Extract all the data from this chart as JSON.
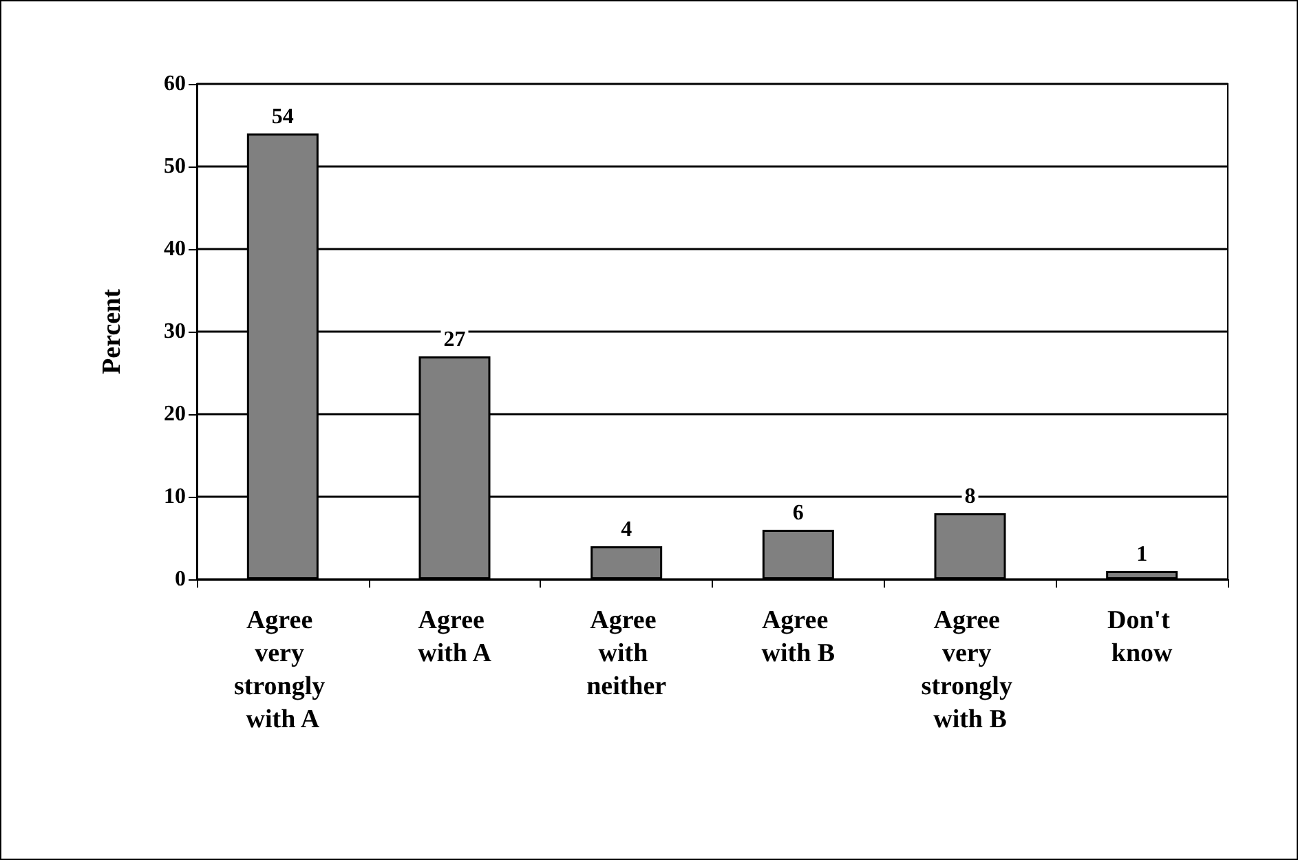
{
  "chart_data": {
    "type": "bar",
    "ylabel": "Percent",
    "categories": [
      "Agree very strongly with A",
      "Agree with A",
      "Agree with neither",
      "Agree with B",
      "Agree very strongly with B",
      "Don't know"
    ],
    "values": [
      54,
      27,
      4,
      6,
      8,
      1
    ],
    "color": "#808080",
    "ylim": [
      0,
      60
    ],
    "yticks": [
      0,
      10,
      20,
      30,
      40,
      50,
      60
    ],
    "grid": "y",
    "data_labels": true
  }
}
